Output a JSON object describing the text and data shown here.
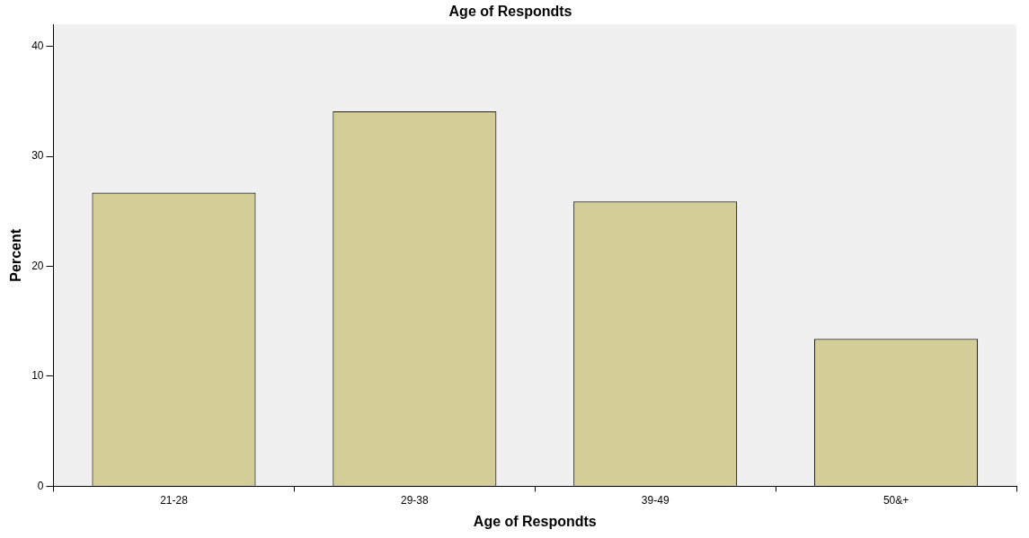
{
  "chart_data": {
    "type": "bar",
    "title": "Age of Respondts",
    "xlabel": "Age of Respondts",
    "ylabel": "Percent",
    "categories": [
      "21-28",
      "29-38",
      "39-49",
      "50&+"
    ],
    "values": [
      26.7,
      34.1,
      25.9,
      13.4
    ],
    "color": "#d3cd98",
    "ylim": [
      0,
      42
    ],
    "yticks": [
      0,
      10,
      20,
      30,
      40
    ],
    "grid": false,
    "legend": false
  }
}
